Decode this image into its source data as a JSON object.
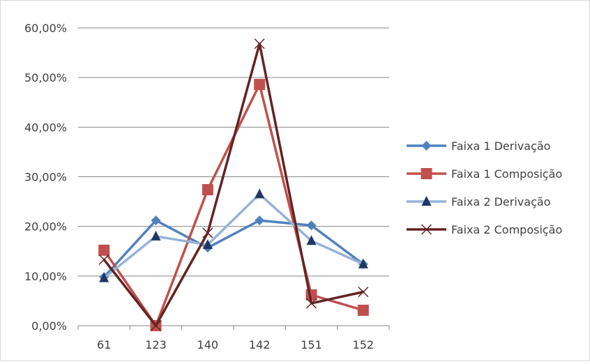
{
  "chart_data": {
    "type": "line",
    "categories": [
      "61",
      "123",
      "140",
      "142",
      "151",
      "152"
    ],
    "y_tick_labels": [
      "0,00%",
      "10,00%",
      "20,00%",
      "30,00%",
      "40,00%",
      "50,00%",
      "60,00%"
    ],
    "ylim": [
      0,
      0.6
    ],
    "y_format": "percent_comma_2dp",
    "grid": "horizontal",
    "legend_position": "right",
    "series": [
      {
        "name": "Faixa 1 Derivação",
        "color": "#4f81bd",
        "marker": "diamond",
        "values": [
          0.098,
          0.212,
          0.157,
          0.212,
          0.202,
          0.124
        ]
      },
      {
        "name": "Faixa 1 Composição",
        "color": "#c0504d",
        "marker": "square",
        "values": [
          0.152,
          0.0,
          0.274,
          0.486,
          0.062,
          0.031
        ]
      },
      {
        "name": "Faixa 2 Derivação",
        "color": "#95b3d7",
        "marker": "triangle",
        "values": [
          0.096,
          0.18,
          0.163,
          0.265,
          0.171,
          0.124
        ]
      },
      {
        "name": "Faixa 2 Composição",
        "color": "#632423",
        "marker": "x",
        "values": [
          0.133,
          0.0,
          0.187,
          0.568,
          0.045,
          0.068
        ]
      }
    ]
  }
}
